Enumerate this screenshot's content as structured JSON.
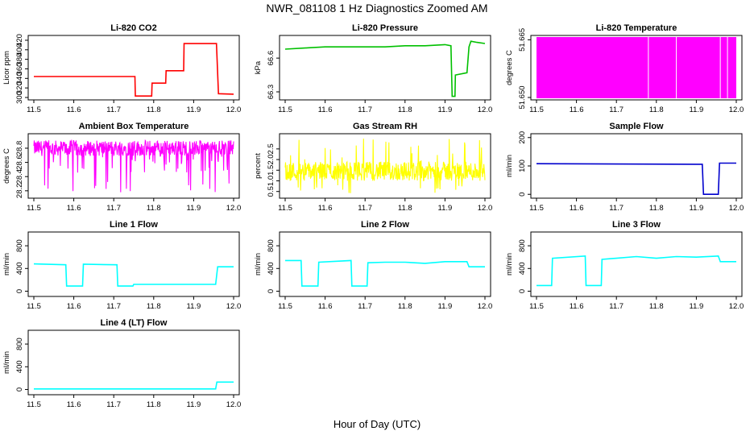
{
  "figure": {
    "title": "NWR_081108  1 Hz Diagnostics Zoomed AM",
    "xlabel": "Hour of Day (UTC)"
  },
  "chart_data": [
    {
      "type": "line",
      "title": "Li-820 CO2",
      "ylabel": "Licor ppm",
      "color": "#ff0000",
      "xlim": [
        11.5,
        12.0
      ],
      "ylim": [
        300,
        425
      ],
      "xticks": [
        "11.5",
        "11.6",
        "11.7",
        "11.8",
        "11.9",
        "12.0"
      ],
      "yticks": [
        "300",
        "320",
        "340",
        "360",
        "380",
        "400",
        "420"
      ],
      "series": [
        {
          "x": [
            11.5,
            11.753,
            11.754,
            11.795,
            11.796,
            11.83,
            11.831,
            11.875,
            11.876,
            11.957,
            11.962,
            12.0
          ],
          "y": [
            344,
            344,
            303,
            303,
            330,
            330,
            356,
            356,
            413,
            413,
            308,
            307
          ]
        }
      ]
    },
    {
      "type": "line",
      "title": "Li-820 Pressure",
      "ylabel": "kPa",
      "color": "#00c000",
      "xlim": [
        11.5,
        12.0
      ],
      "ylim": [
        66.25,
        66.78
      ],
      "xticks": [
        "11.5",
        "11.6",
        "11.7",
        "11.8",
        "11.9",
        "12.0"
      ],
      "yticks": [
        "66.3",
        "66.6"
      ],
      "series": [
        {
          "x": [
            11.5,
            11.55,
            11.6,
            11.65,
            11.7,
            11.75,
            11.8,
            11.85,
            11.9,
            11.915,
            11.918,
            11.925,
            11.926,
            11.955,
            11.96,
            11.965,
            11.98,
            12.0
          ],
          "y": [
            66.68,
            66.69,
            66.7,
            66.7,
            66.7,
            66.7,
            66.71,
            66.71,
            66.72,
            66.71,
            66.26,
            66.26,
            66.45,
            66.47,
            66.7,
            66.75,
            66.74,
            66.73
          ]
        }
      ]
    },
    {
      "type": "area",
      "title": "Li-820 Temperature",
      "ylabel": "degrees C",
      "color": "#ff00ff",
      "xlim": [
        11.5,
        12.0
      ],
      "ylim": [
        51.65,
        51.6655
      ],
      "xticks": [
        "11.5",
        "11.6",
        "11.7",
        "11.8",
        "11.9",
        "12.0"
      ],
      "yticks": [
        "51.650",
        "51.665"
      ],
      "series": [
        {
          "x": [
            11.5,
            12.0
          ],
          "y": [
            51.665,
            51.665
          ]
        }
      ]
    },
    {
      "type": "line",
      "title": "Ambient Box Temperature",
      "ylabel": "degrees C",
      "color": "#ff00ff",
      "xlim": [
        11.5,
        12.0
      ],
      "ylim": [
        28.13,
        28.97
      ],
      "xticks": [
        "11.5",
        "11.6",
        "11.7",
        "11.8",
        "11.9",
        "12.0"
      ],
      "yticks": [
        "28.2",
        "28.4",
        "28.6",
        "28.8"
      ],
      "series": [
        {
          "x": [
            11.5,
            12.0
          ],
          "y": [
            28.8,
            28.8
          ]
        }
      ]
    },
    {
      "type": "line",
      "title": "Gas Stream RH",
      "ylabel": "percent",
      "color": "#ffff00",
      "xlim": [
        11.5,
        12.0
      ],
      "ylim": [
        0.3,
        3.1
      ],
      "xticks": [
        "11.5",
        "11.6",
        "11.7",
        "11.8",
        "11.9",
        "12.0"
      ],
      "yticks": [
        "0.5",
        "1.0",
        "1.5",
        "2.0",
        "2.5"
      ],
      "series": [
        {
          "x": [
            11.5,
            12.0
          ],
          "y": [
            1.4,
            1.4
          ]
        }
      ]
    },
    {
      "type": "line",
      "title": "Sample Flow",
      "ylabel": "ml/min",
      "color": "#0000cd",
      "xlim": [
        11.5,
        12.0
      ],
      "ylim": [
        -5,
        205
      ],
      "xticks": [
        "11.5",
        "11.6",
        "11.7",
        "11.8",
        "11.9",
        "12.0"
      ],
      "yticks": [
        "0",
        "100",
        "200"
      ],
      "series": [
        {
          "x": [
            11.5,
            11.9,
            11.915,
            11.918,
            11.955,
            11.958,
            12.0
          ],
          "y": [
            108,
            106,
            106,
            0,
            0,
            110,
            110
          ]
        }
      ]
    },
    {
      "type": "line",
      "title": "Line 1 Flow",
      "ylabel": "ml/min",
      "color": "#00ffff",
      "xlim": [
        11.5,
        12.0
      ],
      "ylim": [
        -50,
        1000
      ],
      "xticks": [
        "11.5",
        "11.6",
        "11.7",
        "11.8",
        "11.9",
        "12.0"
      ],
      "yticks": [
        "0",
        "400",
        "800"
      ],
      "series": [
        {
          "x": [
            11.5,
            11.58,
            11.582,
            11.622,
            11.624,
            11.708,
            11.71,
            11.748,
            11.75,
            11.955,
            11.96,
            12.0
          ],
          "y": [
            480,
            465,
            90,
            90,
            475,
            465,
            90,
            90,
            120,
            120,
            430,
            430
          ]
        }
      ]
    },
    {
      "type": "line",
      "title": "Line 2 Flow",
      "ylabel": "ml/min",
      "color": "#00ffff",
      "xlim": [
        11.5,
        12.0
      ],
      "ylim": [
        -50,
        1000
      ],
      "xticks": [
        "11.5",
        "11.6",
        "11.7",
        "11.8",
        "11.9",
        "12.0"
      ],
      "yticks": [
        "0",
        "400",
        "800"
      ],
      "series": [
        {
          "x": [
            11.5,
            11.54,
            11.542,
            11.582,
            11.584,
            11.665,
            11.667,
            11.705,
            11.707,
            11.75,
            11.8,
            11.85,
            11.9,
            11.955,
            11.96,
            12.0
          ],
          "y": [
            540,
            540,
            90,
            90,
            510,
            540,
            90,
            90,
            500,
            510,
            510,
            490,
            520,
            520,
            430,
            430
          ]
        }
      ]
    },
    {
      "type": "line",
      "title": "Line 3 Flow",
      "ylabel": "ml/min",
      "color": "#00ffff",
      "xlim": [
        11.5,
        12.0
      ],
      "ylim": [
        -50,
        1000
      ],
      "xticks": [
        "11.5",
        "11.6",
        "11.7",
        "11.8",
        "11.9",
        "12.0"
      ],
      "yticks": [
        "0",
        "400",
        "800"
      ],
      "series": [
        {
          "x": [
            11.5,
            11.538,
            11.54,
            11.622,
            11.624,
            11.662,
            11.664,
            11.75,
            11.8,
            11.85,
            11.9,
            11.955,
            11.96,
            12.0
          ],
          "y": [
            100,
            100,
            580,
            620,
            100,
            100,
            560,
            610,
            580,
            610,
            600,
            620,
            520,
            520
          ]
        }
      ]
    },
    {
      "type": "line",
      "title": "Line 4 (LT) Flow",
      "ylabel": "ml/min",
      "color": "#00ffff",
      "xlim": [
        11.5,
        12.0
      ],
      "ylim": [
        -50,
        1000
      ],
      "xticks": [
        "11.5",
        "11.6",
        "11.7",
        "11.8",
        "11.9",
        "12.0"
      ],
      "yticks": [
        "0",
        "400",
        "800"
      ],
      "series": [
        {
          "x": [
            11.5,
            11.955,
            11.958,
            12.0
          ],
          "y": [
            10,
            10,
            130,
            130
          ]
        }
      ]
    }
  ]
}
